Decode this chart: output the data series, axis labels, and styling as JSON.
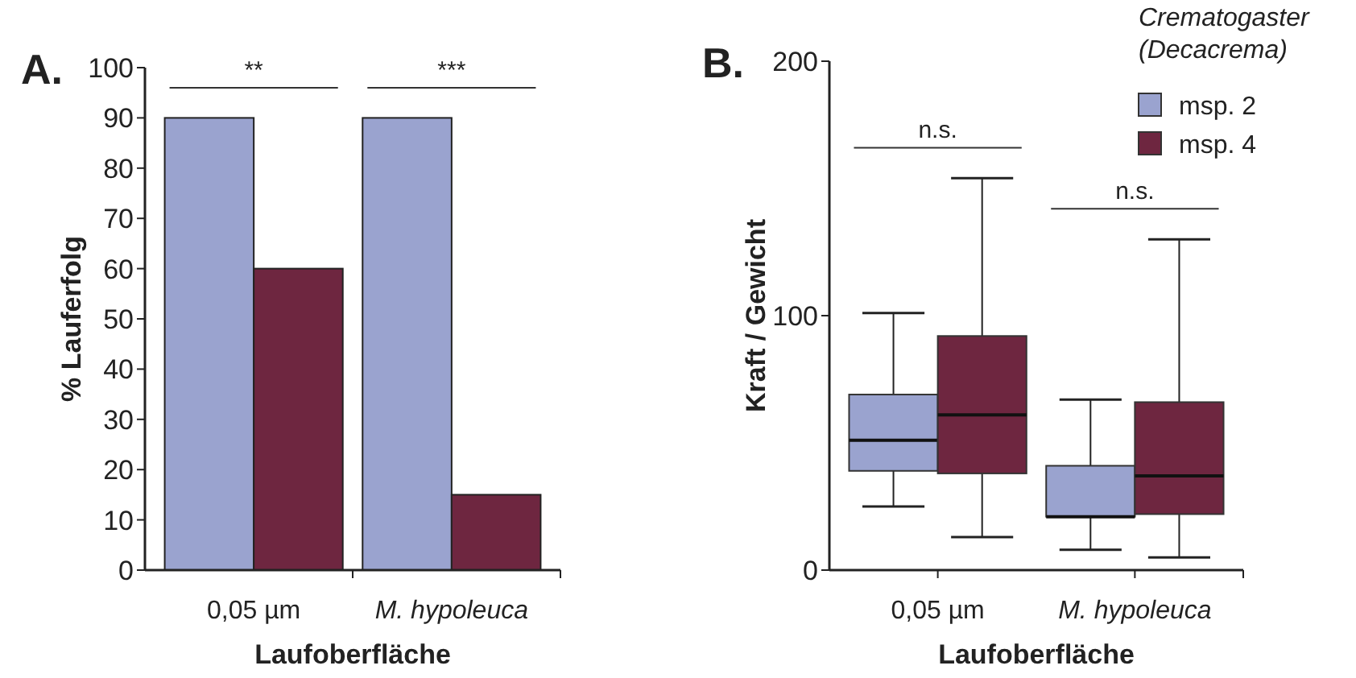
{
  "chart_data": [
    {
      "type": "bar",
      "title": "A.",
      "xlabel": "Laufoberfläche",
      "ylabel": "% Lauferfolg",
      "categories": [
        "0,05 µm",
        "M. hypoleuca"
      ],
      "series": [
        {
          "color": "#9aa3cf",
          "values": [
            90,
            90
          ]
        },
        {
          "color": "#6e2640",
          "values": [
            60,
            15
          ]
        }
      ],
      "ylim": [
        0,
        100
      ],
      "yticks": [
        0,
        10,
        20,
        30,
        40,
        50,
        60,
        70,
        80,
        90,
        100
      ],
      "grid": false,
      "legend": false,
      "annotations": [
        "**",
        "***"
      ]
    },
    {
      "type": "box",
      "title": "B.",
      "xlabel": "Laufoberfläche",
      "ylabel": "Kraft / Gewicht",
      "legend_title": "Crematogaster (Decacrema)",
      "categories": [
        "0,05 µm",
        "M. hypoleuca"
      ],
      "series": [
        {
          "name": "msp. 2",
          "color": "#9aa3cf",
          "boxes": [
            {
              "low": 25,
              "q1": 39,
              "median": 51,
              "q3": 69,
              "high": 101
            },
            {
              "low": 8,
              "q1": 21,
              "median": 21,
              "q3": 41,
              "high": 67
            }
          ]
        },
        {
          "name": "msp. 4",
          "color": "#6e2640",
          "boxes": [
            {
              "low": 13,
              "q1": 38,
              "median": 61,
              "q3": 92,
              "high": 154
            },
            {
              "low": 5,
              "q1": 22,
              "median": 37,
              "q3": 66,
              "high": 130
            }
          ]
        }
      ],
      "ylim": [
        0,
        200
      ],
      "yticks": [
        0,
        100,
        200
      ],
      "grid": false,
      "legend": "top right",
      "annotations": [
        "n.s.",
        "n.s."
      ]
    }
  ]
}
